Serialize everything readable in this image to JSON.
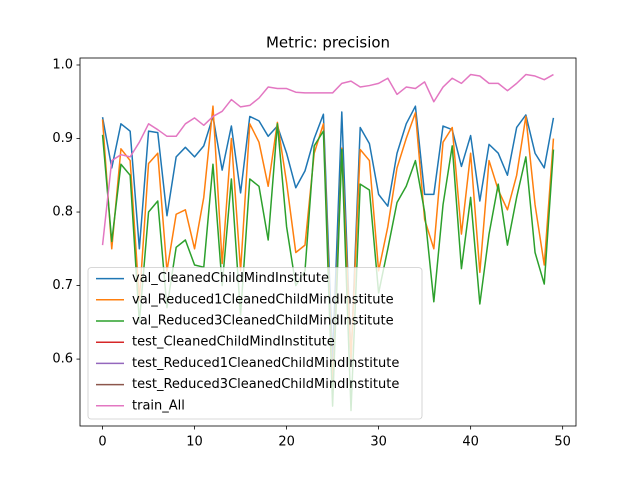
{
  "chart_data": {
    "type": "line",
    "title": "Metric: precision",
    "x": [
      0,
      1,
      2,
      3,
      4,
      5,
      6,
      7,
      8,
      9,
      10,
      11,
      12,
      13,
      14,
      15,
      16,
      17,
      18,
      19,
      20,
      21,
      22,
      23,
      24,
      25,
      26,
      27,
      28,
      29,
      30,
      31,
      32,
      33,
      34,
      35,
      36,
      37,
      38,
      39,
      40,
      41,
      42,
      43,
      44,
      45,
      46,
      47,
      48,
      49
    ],
    "xlim": [
      -2.45,
      51.45
    ],
    "xticks": [
      0,
      10,
      20,
      30,
      40,
      50
    ],
    "ylim": [
      0.509,
      1.0095
    ],
    "yticks": [
      0.6,
      0.7,
      0.8,
      0.9,
      {
        "value": 1.0,
        "label": "1.0"
      }
    ],
    "legend": "lower left",
    "series": [
      {
        "name": "val_CleanedChildMindInstitute",
        "color": "#1f77b4",
        "values": [
          0.929,
          0.86,
          0.92,
          0.91,
          0.75,
          0.91,
          0.908,
          0.795,
          0.875,
          0.888,
          0.875,
          0.89,
          0.93,
          0.857,
          0.917,
          0.826,
          0.93,
          0.924,
          0.903,
          0.917,
          0.88,
          0.833,
          0.856,
          0.9,
          0.933,
          0.6,
          0.936,
          0.6,
          0.915,
          0.893,
          0.824,
          0.808,
          0.88,
          0.92,
          0.944,
          0.824,
          0.824,
          0.917,
          0.912,
          0.862,
          0.904,
          0.815,
          0.892,
          0.88,
          0.85,
          0.915,
          0.932,
          0.88,
          0.86,
          0.928
        ]
      },
      {
        "name": "val_Reduced1CleanedChildMindInstitute",
        "color": "#ff7f0e",
        "values": [
          0.926,
          0.75,
          0.886,
          0.87,
          0.68,
          0.866,
          0.88,
          0.72,
          0.797,
          0.803,
          0.75,
          0.82,
          0.944,
          0.73,
          0.9,
          0.72,
          0.92,
          0.895,
          0.835,
          0.922,
          0.84,
          0.745,
          0.755,
          0.88,
          0.92,
          0.56,
          0.887,
          0.6,
          0.885,
          0.87,
          0.72,
          0.78,
          0.86,
          0.9,
          0.935,
          0.79,
          0.75,
          0.895,
          0.915,
          0.77,
          0.88,
          0.718,
          0.87,
          0.83,
          0.803,
          0.85,
          0.93,
          0.81,
          0.728,
          0.9
        ]
      },
      {
        "name": "val_Reduced3CleanedChildMindInstitute",
        "color": "#2ca02c",
        "values": [
          0.905,
          0.76,
          0.865,
          0.85,
          0.65,
          0.8,
          0.815,
          0.67,
          0.752,
          0.762,
          0.728,
          0.725,
          0.865,
          0.7,
          0.845,
          0.66,
          0.845,
          0.835,
          0.762,
          0.92,
          0.78,
          0.7,
          0.72,
          0.89,
          0.91,
          0.536,
          0.885,
          0.53,
          0.838,
          0.83,
          0.69,
          0.75,
          0.813,
          0.835,
          0.87,
          0.8,
          0.678,
          0.81,
          0.89,
          0.723,
          0.82,
          0.675,
          0.77,
          0.838,
          0.755,
          0.82,
          0.875,
          0.745,
          0.702,
          0.885
        ]
      },
      {
        "name": "test_CleanedChildMindInstitute",
        "color": "#d62728",
        "values": [
          null,
          null,
          null,
          null,
          null,
          null,
          null,
          null,
          null,
          null,
          null,
          null,
          null,
          null,
          null,
          null,
          null,
          null,
          null,
          null,
          null,
          null,
          null,
          null,
          null,
          null,
          null,
          null,
          null,
          null,
          null,
          null,
          null,
          null,
          null,
          null,
          null,
          null,
          null,
          null,
          null,
          null,
          null,
          null,
          null,
          null,
          null,
          null,
          null,
          null
        ]
      },
      {
        "name": "test_Reduced1CleanedChildMindInstitute",
        "color": "#9467bd",
        "values": [
          null,
          null,
          null,
          null,
          null,
          null,
          null,
          null,
          null,
          null,
          null,
          null,
          null,
          null,
          null,
          null,
          null,
          null,
          null,
          null,
          null,
          null,
          null,
          null,
          null,
          null,
          null,
          null,
          null,
          null,
          null,
          null,
          null,
          null,
          null,
          null,
          null,
          null,
          null,
          null,
          null,
          null,
          null,
          null,
          null,
          null,
          null,
          null,
          null,
          null
        ]
      },
      {
        "name": "test_Reduced3CleanedChildMindInstitute",
        "color": "#8c564b",
        "values": [
          null,
          null,
          null,
          null,
          null,
          null,
          null,
          null,
          null,
          null,
          null,
          null,
          null,
          null,
          null,
          null,
          null,
          null,
          null,
          null,
          null,
          null,
          null,
          null,
          null,
          null,
          null,
          null,
          null,
          null,
          null,
          null,
          null,
          null,
          null,
          null,
          null,
          null,
          null,
          null,
          null,
          null,
          null,
          null,
          null,
          null,
          null,
          null,
          null,
          null
        ]
      },
      {
        "name": "train_All",
        "color": "#e377c2",
        "values": [
          0.755,
          0.87,
          0.878,
          0.875,
          0.895,
          0.92,
          0.912,
          0.903,
          0.903,
          0.92,
          0.928,
          0.918,
          0.93,
          0.937,
          0.953,
          0.943,
          0.945,
          0.955,
          0.97,
          0.968,
          0.968,
          0.963,
          0.962,
          0.962,
          0.962,
          0.962,
          0.975,
          0.978,
          0.97,
          0.972,
          0.975,
          0.982,
          0.96,
          0.97,
          0.968,
          0.977,
          0.95,
          0.97,
          0.982,
          0.975,
          0.987,
          0.985,
          0.975,
          0.975,
          0.965,
          0.975,
          0.987,
          0.985,
          0.98,
          0.987
        ]
      }
    ]
  }
}
